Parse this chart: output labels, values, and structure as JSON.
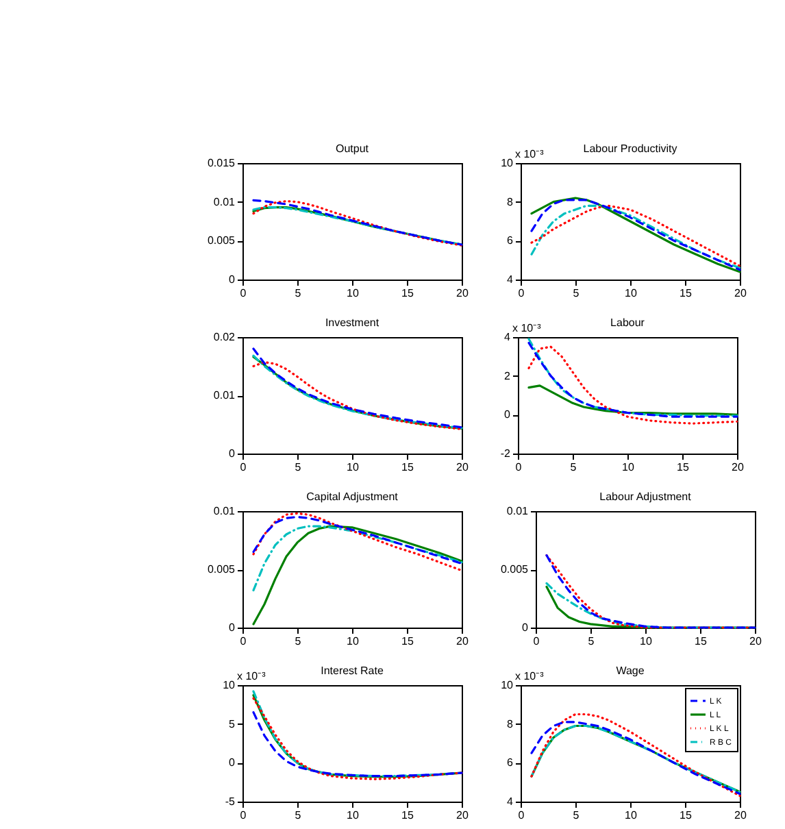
{
  "chart_data": [
    {
      "type": "line",
      "title": "Output",
      "x": [
        1,
        2,
        3,
        4,
        5,
        6,
        7,
        8,
        10,
        12,
        14,
        16,
        18,
        20
      ],
      "xlim": [
        0,
        20
      ],
      "xticks": [
        0,
        5,
        10,
        15,
        20
      ],
      "ylim": [
        0,
        0.015
      ],
      "yticks": [
        0,
        0.005,
        0.01,
        0.015
      ],
      "series": [
        {
          "color": "#0000ff",
          "line_style": "dashed",
          "values": [
            0.0102,
            0.0101,
            0.0099,
            0.0097,
            0.0094,
            0.0091,
            0.0087,
            0.0083,
            0.0076,
            0.0069,
            0.0062,
            0.0056,
            0.005,
            0.0045
          ]
        },
        {
          "color": "#008000",
          "line_style": "solid",
          "values": [
            0.0088,
            0.0092,
            0.0093,
            0.0093,
            0.0091,
            0.0088,
            0.0085,
            0.0082,
            0.0075,
            0.0068,
            0.0062,
            0.0056,
            0.005,
            0.0045
          ]
        },
        {
          "color": "#ff0000",
          "line_style": "dotted",
          "values": [
            0.0085,
            0.0094,
            0.0099,
            0.0101,
            0.01,
            0.0097,
            0.0093,
            0.0088,
            0.0079,
            0.007,
            0.0062,
            0.0055,
            0.0049,
            0.0044
          ]
        },
        {
          "color": "#00bfbf",
          "line_style": "dashdot",
          "values": [
            0.009,
            0.0093,
            0.0093,
            0.0092,
            0.009,
            0.0087,
            0.0084,
            0.0081,
            0.0075,
            0.0068,
            0.0062,
            0.0056,
            0.005,
            0.0045
          ]
        }
      ]
    },
    {
      "type": "line",
      "title": "Labour Productivity",
      "annotations": [
        "x 10⁻³"
      ],
      "x": [
        1,
        2,
        3,
        4,
        5,
        6,
        7,
        8,
        10,
        12,
        14,
        16,
        18,
        20
      ],
      "xlim": [
        0,
        20
      ],
      "xticks": [
        0,
        5,
        10,
        15,
        20
      ],
      "ylim": [
        4,
        10
      ],
      "yticks": [
        4,
        6,
        8,
        10
      ],
      "series": [
        {
          "color": "#0000ff",
          "line_style": "dashed",
          "values": [
            6.5,
            7.4,
            7.9,
            8.1,
            8.1,
            8.1,
            7.9,
            7.7,
            7.2,
            6.6,
            6.0,
            5.5,
            5.0,
            4.5
          ]
        },
        {
          "color": "#008000",
          "line_style": "solid",
          "values": [
            7.4,
            7.7,
            8.0,
            8.1,
            8.2,
            8.1,
            7.9,
            7.6,
            7.0,
            6.4,
            5.8,
            5.3,
            4.8,
            4.4
          ]
        },
        {
          "color": "#ff0000",
          "line_style": "dotted",
          "values": [
            5.9,
            6.2,
            6.6,
            6.9,
            7.2,
            7.5,
            7.7,
            7.8,
            7.6,
            7.1,
            6.5,
            5.9,
            5.3,
            4.7
          ]
        },
        {
          "color": "#00bfbf",
          "line_style": "dashdot",
          "values": [
            5.3,
            6.3,
            7.0,
            7.4,
            7.6,
            7.8,
            7.8,
            7.7,
            7.3,
            6.7,
            6.1,
            5.5,
            5.0,
            4.6
          ]
        }
      ]
    },
    {
      "type": "line",
      "title": "Investment",
      "x": [
        1,
        2,
        3,
        4,
        5,
        6,
        7,
        8,
        10,
        12,
        14,
        16,
        18,
        20
      ],
      "xlim": [
        0,
        20
      ],
      "xticks": [
        0,
        5,
        10,
        15,
        20
      ],
      "ylim": [
        0,
        0.02
      ],
      "yticks": [
        0,
        0.01,
        0.02
      ],
      "series": [
        {
          "color": "#0000ff",
          "line_style": "dashed",
          "values": [
            0.018,
            0.0155,
            0.0138,
            0.0124,
            0.0112,
            0.0102,
            0.0094,
            0.0087,
            0.0076,
            0.0068,
            0.0061,
            0.0055,
            0.005,
            0.0045
          ]
        },
        {
          "color": "#008000",
          "line_style": "solid",
          "values": [
            0.0166,
            0.0152,
            0.0137,
            0.0122,
            0.011,
            0.01,
            0.0092,
            0.0085,
            0.0074,
            0.0065,
            0.0058,
            0.0052,
            0.0047,
            0.0043
          ]
        },
        {
          "color": "#ff0000",
          "line_style": "dotted",
          "values": [
            0.015,
            0.0157,
            0.0154,
            0.0145,
            0.0132,
            0.0118,
            0.0105,
            0.0094,
            0.0077,
            0.0065,
            0.0057,
            0.0051,
            0.0046,
            0.0042
          ]
        },
        {
          "color": "#00bfbf",
          "line_style": "dashdot",
          "values": [
            0.0168,
            0.015,
            0.0135,
            0.0121,
            0.0109,
            0.0099,
            0.0091,
            0.0084,
            0.0073,
            0.0065,
            0.0058,
            0.0053,
            0.0048,
            0.0044
          ]
        }
      ]
    },
    {
      "type": "line",
      "title": "Labour",
      "annotations": [
        "x 10⁻³"
      ],
      "x": [
        1,
        2,
        3,
        4,
        5,
        6,
        7,
        8,
        10,
        12,
        14,
        16,
        18,
        20
      ],
      "xlim": [
        0,
        20
      ],
      "xticks": [
        0,
        5,
        10,
        15,
        20
      ],
      "ylim": [
        -2,
        4
      ],
      "yticks": [
        -2,
        0,
        2,
        4
      ],
      "series": [
        {
          "color": "#0000ff",
          "line_style": "dashed",
          "values": [
            3.7,
            2.8,
            2.0,
            1.4,
            0.9,
            0.6,
            0.4,
            0.3,
            0.1,
            0.0,
            -0.1,
            -0.1,
            -0.1,
            -0.1
          ]
        },
        {
          "color": "#008000",
          "line_style": "solid",
          "values": [
            1.4,
            1.5,
            1.2,
            0.9,
            0.6,
            0.4,
            0.3,
            0.2,
            0.1,
            0.1,
            0.05,
            0.05,
            0.05,
            0.0
          ]
        },
        {
          "color": "#ff0000",
          "line_style": "dotted",
          "values": [
            2.4,
            3.4,
            3.5,
            3.0,
            2.2,
            1.4,
            0.8,
            0.4,
            -0.1,
            -0.3,
            -0.4,
            -0.45,
            -0.4,
            -0.35
          ]
        },
        {
          "color": "#00bfbf",
          "line_style": "dashdot",
          "values": [
            3.9,
            2.9,
            2.0,
            1.3,
            0.9,
            0.6,
            0.4,
            0.3,
            0.1,
            0.0,
            0.0,
            -0.05,
            -0.05,
            -0.05
          ]
        }
      ]
    },
    {
      "type": "line",
      "title": "Capital Adjustment",
      "x": [
        1,
        2,
        3,
        4,
        5,
        6,
        7,
        8,
        10,
        12,
        14,
        16,
        18,
        20
      ],
      "xlim": [
        0,
        20
      ],
      "xticks": [
        0,
        5,
        10,
        15,
        20
      ],
      "ylim": [
        0,
        0.01
      ],
      "yticks": [
        0,
        0.005,
        0.01
      ],
      "series": [
        {
          "color": "#0000ff",
          "line_style": "dashed",
          "values": [
            0.0065,
            0.008,
            0.009,
            0.0094,
            0.0095,
            0.0094,
            0.0092,
            0.0089,
            0.0084,
            0.0079,
            0.0073,
            0.0067,
            0.0061,
            0.0055
          ]
        },
        {
          "color": "#008000",
          "line_style": "solid",
          "values": [
            0.0003,
            0.002,
            0.0042,
            0.0061,
            0.0073,
            0.0081,
            0.0085,
            0.0087,
            0.0086,
            0.0081,
            0.0076,
            0.007,
            0.0064,
            0.0057
          ]
        },
        {
          "color": "#ff0000",
          "line_style": "dotted",
          "values": [
            0.0063,
            0.008,
            0.0091,
            0.0097,
            0.0098,
            0.0097,
            0.0094,
            0.009,
            0.0083,
            0.0076,
            0.0069,
            0.0063,
            0.0056,
            0.0049
          ]
        },
        {
          "color": "#00bfbf",
          "line_style": "dashdot",
          "values": [
            0.0032,
            0.0055,
            0.0071,
            0.008,
            0.0085,
            0.0087,
            0.0087,
            0.0086,
            0.0083,
            0.0078,
            0.0073,
            0.0067,
            0.0062,
            0.0056
          ]
        }
      ]
    },
    {
      "type": "line",
      "title": "Labour Adjustment",
      "x": [
        1,
        2,
        3,
        4,
        5,
        6,
        7,
        8,
        10,
        12,
        14,
        16,
        18,
        20
      ],
      "xlim": [
        0,
        20
      ],
      "xticks": [
        0,
        5,
        10,
        15,
        20
      ],
      "ylim": [
        0,
        0.01
      ],
      "yticks": [
        0,
        0.005,
        0.01
      ],
      "series": [
        {
          "color": "#0000ff",
          "line_style": "dashed",
          "values": [
            0.0062,
            0.0045,
            0.0032,
            0.0021,
            0.0013,
            0.0008,
            0.0006,
            0.0004,
            0.0001,
            0,
            0,
            0,
            0,
            0
          ]
        },
        {
          "color": "#008000",
          "line_style": "solid",
          "values": [
            0.0035,
            0.0017,
            0.0009,
            0.0005,
            0.0003,
            0.0002,
            0.0001,
            0.0001,
            0,
            0,
            0,
            0,
            0,
            0
          ]
        },
        {
          "color": "#ff0000",
          "line_style": "dotted",
          "values": [
            0.0062,
            0.005,
            0.0037,
            0.0025,
            0.0016,
            0.0009,
            0.0004,
            0.0002,
            0,
            0,
            0,
            0,
            0,
            0
          ]
        },
        {
          "color": "#00bfbf",
          "line_style": "dashdot",
          "values": [
            0.0038,
            0.0029,
            0.0023,
            0.0017,
            0.0012,
            0.0008,
            0.0005,
            0.0003,
            0.0001,
            0,
            0,
            0,
            0,
            0
          ]
        }
      ]
    },
    {
      "type": "line",
      "title": "Interest Rate",
      "annotations": [
        "x 10⁻³"
      ],
      "x": [
        1,
        2,
        3,
        4,
        5,
        6,
        7,
        8,
        10,
        12,
        14,
        16,
        18,
        20
      ],
      "xlim": [
        0,
        20
      ],
      "xticks": [
        0,
        5,
        10,
        15,
        20
      ],
      "ylim": [
        -5,
        10
      ],
      "yticks": [
        -5,
        0,
        5,
        10
      ],
      "series": [
        {
          "color": "#0000ff",
          "line_style": "dashed",
          "values": [
            6.5,
            3.5,
            1.5,
            0.2,
            -0.5,
            -0.9,
            -1.2,
            -1.4,
            -1.6,
            -1.7,
            -1.7,
            -1.6,
            -1.5,
            -1.3
          ]
        },
        {
          "color": "#008000",
          "line_style": "solid",
          "values": [
            8.7,
            5.5,
            3.0,
            1.2,
            0.0,
            -0.8,
            -1.2,
            -1.5,
            -1.7,
            -1.8,
            -1.8,
            -1.7,
            -1.5,
            -1.3
          ]
        },
        {
          "color": "#ff0000",
          "line_style": "dotted",
          "values": [
            8.3,
            6.0,
            3.6,
            1.6,
            0.2,
            -0.7,
            -1.3,
            -1.7,
            -2.0,
            -2.1,
            -2.0,
            -1.8,
            -1.5,
            -1.3
          ]
        },
        {
          "color": "#00bfbf",
          "line_style": "dashdot",
          "values": [
            9.2,
            5.8,
            3.1,
            1.2,
            0.0,
            -0.8,
            -1.2,
            -1.5,
            -1.6,
            -1.7,
            -1.7,
            -1.6,
            -1.5,
            -1.3
          ]
        }
      ]
    },
    {
      "type": "line",
      "title": "Wage",
      "annotations": [
        "x 10⁻³"
      ],
      "legend": "top right",
      "x": [
        1,
        2,
        3,
        4,
        5,
        6,
        7,
        8,
        10,
        12,
        14,
        16,
        18,
        20
      ],
      "xlim": [
        0,
        20
      ],
      "xticks": [
        0,
        5,
        10,
        15,
        20
      ],
      "ylim": [
        4,
        10
      ],
      "yticks": [
        4,
        6,
        8,
        10
      ],
      "series": [
        {
          "name": "L K",
          "color": "#0000ff",
          "line_style": "dashed",
          "values": [
            6.5,
            7.4,
            7.9,
            8.1,
            8.1,
            8.0,
            7.9,
            7.7,
            7.2,
            6.6,
            6.0,
            5.4,
            4.9,
            4.4
          ]
        },
        {
          "name": "L L",
          "color": "#008000",
          "line_style": "solid",
          "values": [
            5.3,
            6.5,
            7.3,
            7.7,
            7.9,
            7.9,
            7.8,
            7.6,
            7.1,
            6.6,
            6.0,
            5.5,
            5.0,
            4.5
          ]
        },
        {
          "name": "L K L",
          "color": "#ff0000",
          "line_style": "dotted",
          "values": [
            5.3,
            6.6,
            7.6,
            8.2,
            8.5,
            8.5,
            8.4,
            8.2,
            7.6,
            6.9,
            6.2,
            5.5,
            4.9,
            4.3
          ]
        },
        {
          "name": "R B C",
          "color": "#00bfbf",
          "line_style": "dashdot",
          "values": [
            5.3,
            6.5,
            7.3,
            7.7,
            7.9,
            7.9,
            7.8,
            7.6,
            7.1,
            6.6,
            6.0,
            5.5,
            5.0,
            4.5
          ]
        }
      ]
    }
  ]
}
